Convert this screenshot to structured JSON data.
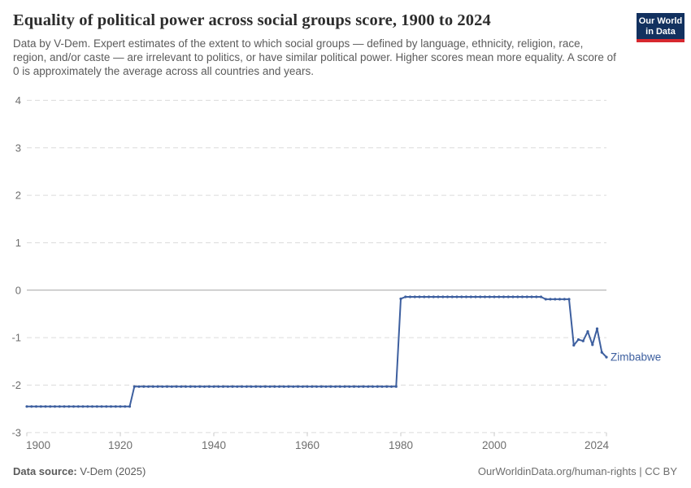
{
  "header": {
    "title": "Equality of political power across social groups score, 1900 to 2024",
    "subtitle": "Data by V-Dem. Expert estimates of the extent to which social groups — defined by language, ethnicity, religion, race, region, and/or caste — are irrelevant to politics, or have similar political power. Higher scores mean more equality. A score of 0 is approximately the average across all countries and years.",
    "logo": {
      "line1": "Our World",
      "line2": "in Data",
      "bg_color": "#12315f",
      "accent_color": "#d7282f"
    }
  },
  "chart_data": {
    "type": "line",
    "title": "Equality of political power across social groups score, 1900 to 2024",
    "xlabel": "",
    "ylabel": "",
    "xlim": [
      1900,
      2024
    ],
    "ylim": [
      -3,
      4
    ],
    "x_ticks": [
      1900,
      1920,
      1940,
      1960,
      1980,
      2000,
      2024
    ],
    "y_ticks": [
      4,
      3,
      2,
      1,
      0,
      -1,
      -2,
      -3
    ],
    "grid": "horizontal dashed, solid line at 0",
    "legend_position": "end-of-line label",
    "colors": {
      "line": "#3d5f9f",
      "grid": "#dcdcdc",
      "zero_line": "#a3a3a3",
      "axis_text": "#6e6e6e",
      "tick": "#c8c8c8"
    },
    "series": [
      {
        "name": "Zimbabwe",
        "color": "#3d5f9f",
        "step_segments": [
          {
            "from": 1900,
            "to": 1922,
            "value": -2.45
          },
          {
            "from": 1923,
            "to": 1979,
            "value": -2.03
          },
          {
            "from": 1980,
            "to": 1980,
            "value": -0.18
          },
          {
            "from": 1981,
            "to": 2010,
            "value": -0.14
          },
          {
            "from": 2011,
            "to": 2016,
            "value": -0.19
          }
        ],
        "annual_points": [
          [
            2017,
            -1.16
          ],
          [
            2018,
            -1.04
          ],
          [
            2019,
            -1.07
          ],
          [
            2020,
            -0.87
          ],
          [
            2021,
            -1.15
          ],
          [
            2022,
            -0.81
          ],
          [
            2023,
            -1.31
          ],
          [
            2024,
            -1.41
          ]
        ]
      }
    ]
  },
  "footer": {
    "datasource_label": "Data source:",
    "datasource_value": "V-Dem (2025)",
    "attribution": "OurWorldinData.org/human-rights | CC BY"
  }
}
